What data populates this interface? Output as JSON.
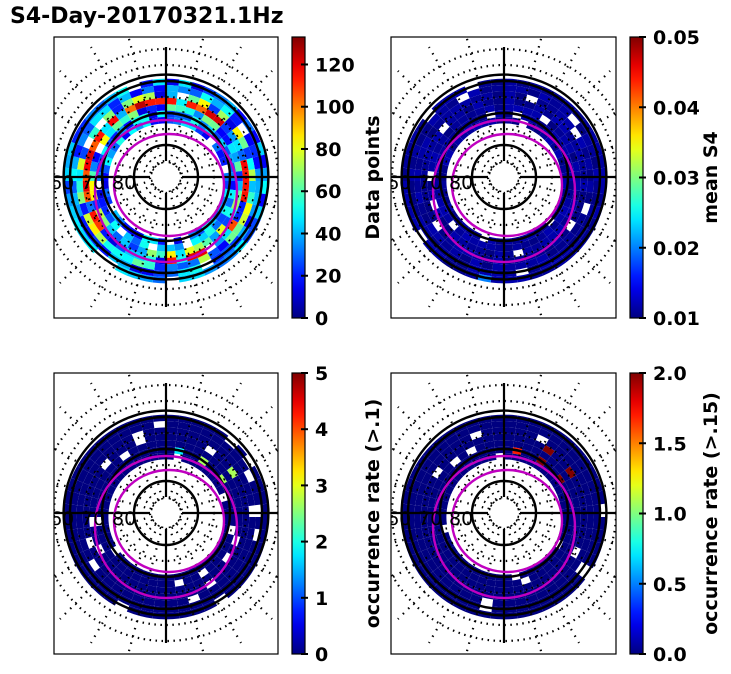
{
  "figure": {
    "title": "S4-Day-20170321.1Hz"
  },
  "polar_grid": {
    "radial_labels": [
      "60",
      "70",
      "80"
    ],
    "lat_rings_solid": [
      60,
      70,
      80
    ],
    "lat_rings_dotted": [
      55,
      65,
      75,
      85
    ],
    "mlt_spokes": 24,
    "boundary_color": "#c000c0"
  },
  "chart_data": [
    {
      "type": "heatmap",
      "projection": "polar (magnetic latitude / MLT)",
      "title": "",
      "colorbar": {
        "label": "Data points",
        "min": 0,
        "max": 133,
        "ticks": [
          "0",
          "20",
          "40",
          "60",
          "80",
          "100",
          "120"
        ],
        "tick_values": [
          0,
          20,
          40,
          60,
          80,
          100,
          120
        ],
        "colormap": "jet"
      },
      "description": "Annular band of bins between ~58° and ~72° latitude; values mostly 10–60 with a thin ring of high counts (~100–130) near 66–67°.",
      "band": {
        "lat_min": 58,
        "lat_max": 72,
        "typical_value": 30,
        "peak_value": 125
      }
    },
    {
      "type": "heatmap",
      "projection": "polar (magnetic latitude / MLT)",
      "title": "",
      "colorbar": {
        "label": "mean S4",
        "min": 0.01,
        "max": 0.05,
        "ticks": [
          "0.01",
          "0.02",
          "0.03",
          "0.04",
          "0.05"
        ],
        "tick_values": [
          0.01,
          0.02,
          0.03,
          0.04,
          0.05
        ],
        "colormap": "jet"
      },
      "description": "Nearly all bins at ~0.01 (dark blue); a few bins near midnight sector ~0.02.",
      "band": {
        "lat_min": 58,
        "lat_max": 72,
        "typical_value": 0.01,
        "peak_value": 0.02
      }
    },
    {
      "type": "heatmap",
      "projection": "polar (magnetic latitude / MLT)",
      "title": "",
      "colorbar": {
        "label": "occurrence rate (>.1)",
        "min": 0,
        "max": 5,
        "ticks": [
          "0",
          "1",
          "2",
          "3",
          "4",
          "5"
        ],
        "tick_values": [
          0,
          1,
          2,
          3,
          4,
          5
        ],
        "colormap": "jet"
      },
      "description": "Mostly 0 occurrence; a few bins in the pre-noon/dayside sector at ~1.5–2.8.",
      "band": {
        "lat_min": 58,
        "lat_max": 72,
        "typical_value": 0,
        "peak_value": 2.8
      }
    },
    {
      "type": "heatmap",
      "projection": "polar (magnetic latitude / MLT)",
      "title": "",
      "colorbar": {
        "label": "occurrence rate (>.15)",
        "min": 0.0,
        "max": 2.0,
        "ticks": [
          "0.0",
          "0.5",
          "1.0",
          "1.5",
          "2.0"
        ],
        "tick_values": [
          0.0,
          0.5,
          1.0,
          1.5,
          2.0
        ],
        "colormap": "jet"
      },
      "description": "Mostly 0; a few bins in the same dayside sector at ~1.7–2.0.",
      "band": {
        "lat_min": 58,
        "lat_max": 72,
        "typical_value": 0,
        "peak_value": 2.0
      }
    }
  ]
}
